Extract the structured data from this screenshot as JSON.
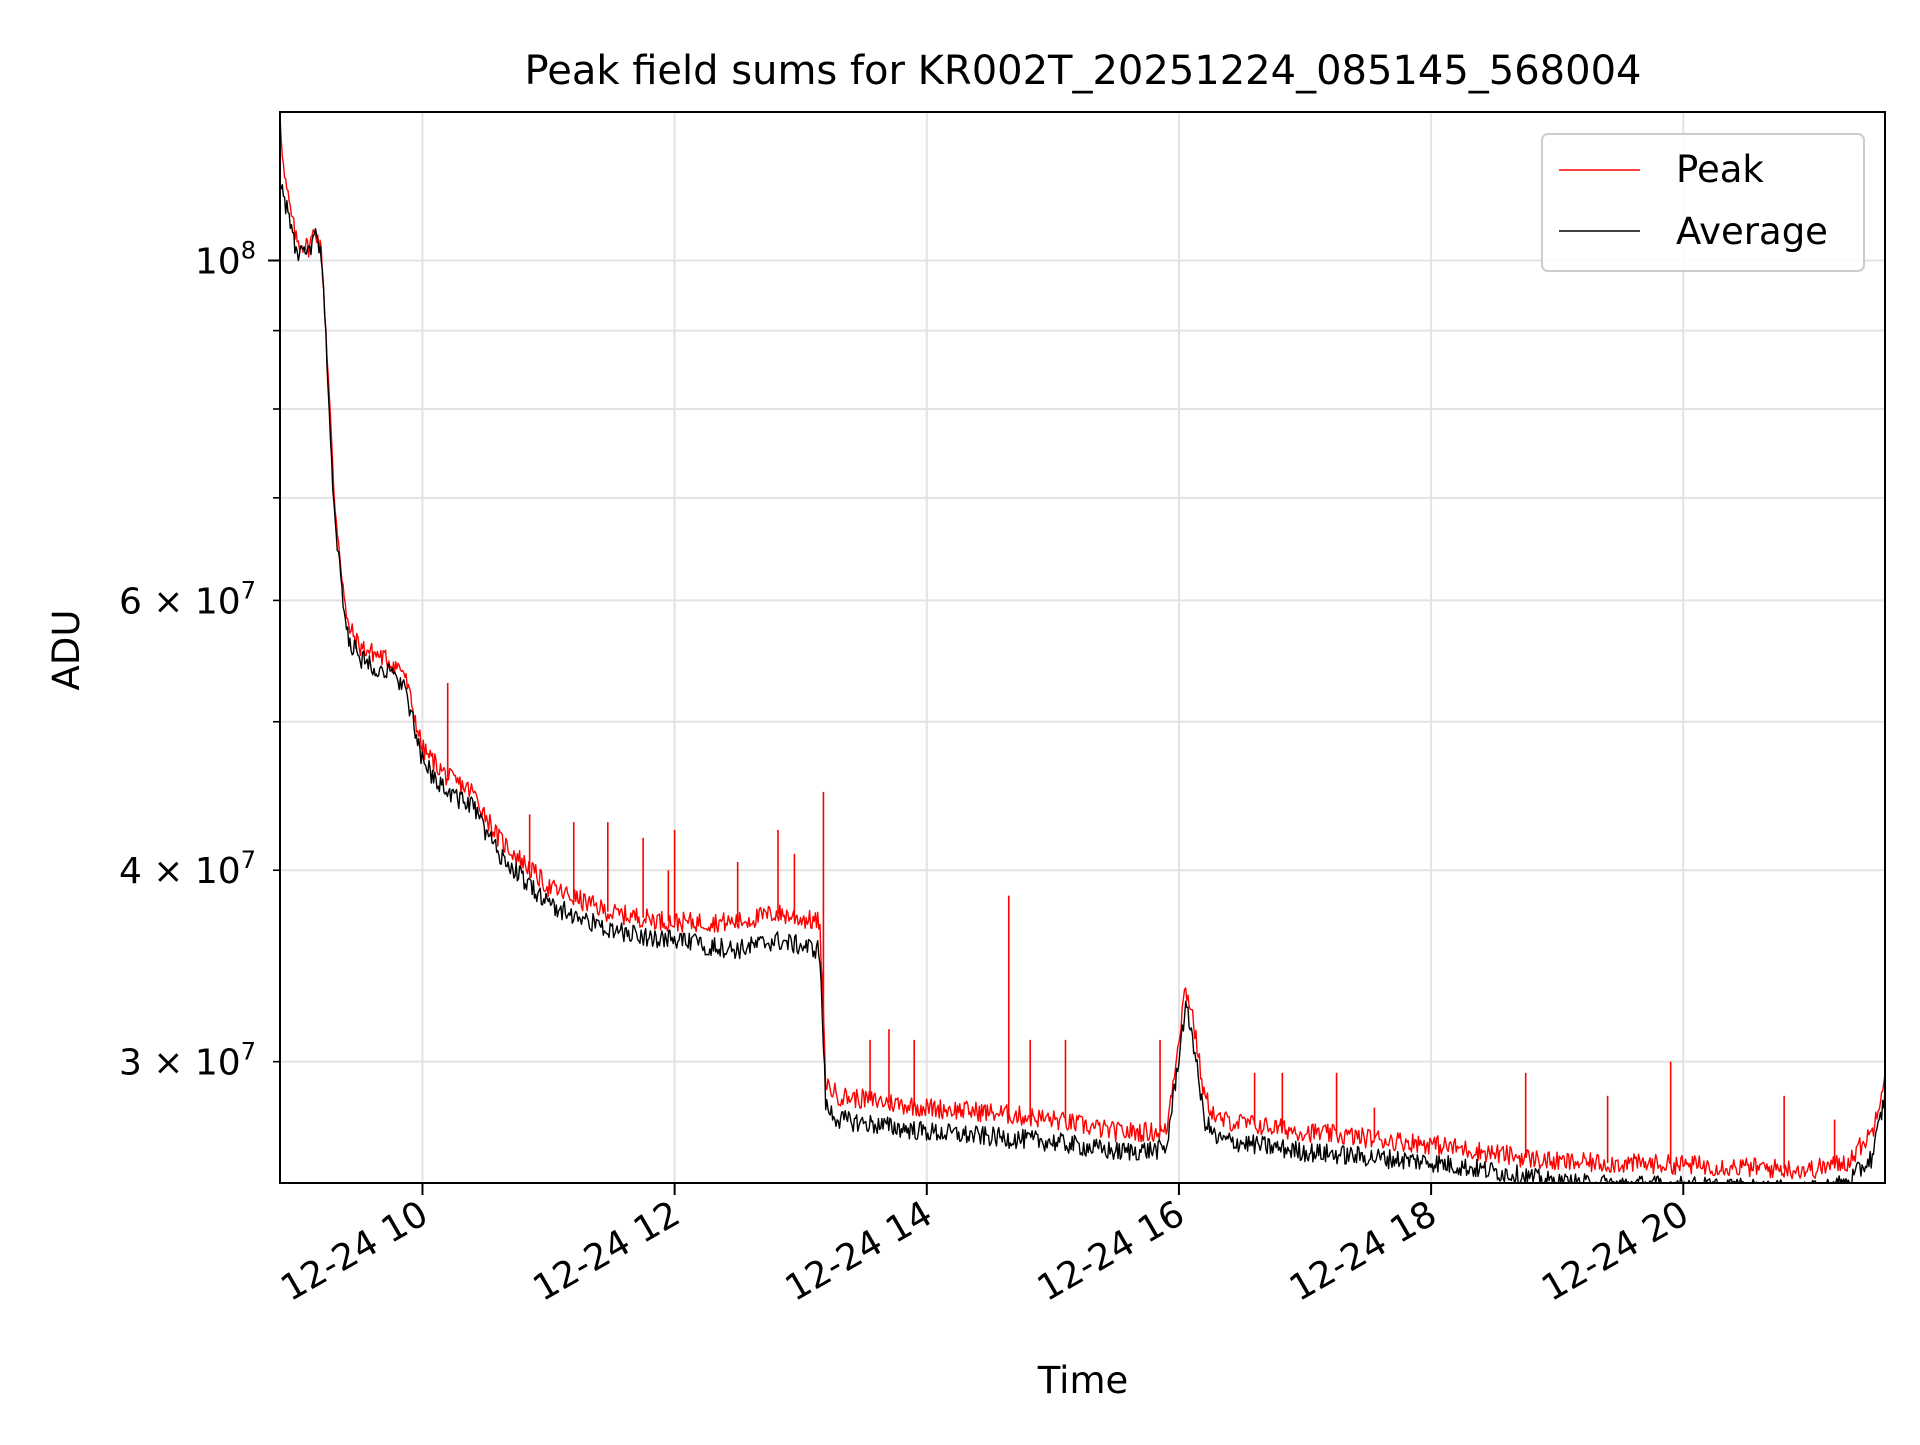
{
  "chart_data": {
    "type": "line",
    "title": "Peak field sums for KR002T_20251224_085145_568004",
    "xlabel": "Time",
    "ylabel": "ADU",
    "x_unit": "hours of day on 12-24",
    "xlim": [
      8.87,
      21.6
    ],
    "ylim": [
      25000000,
      125000000
    ],
    "yscale": "log",
    "grid": true,
    "legend_position": "top-right",
    "x_ticks": [
      {
        "value": 10,
        "label": "12-24 10"
      },
      {
        "value": 12,
        "label": "12-24 12"
      },
      {
        "value": 14,
        "label": "12-24 14"
      },
      {
        "value": 16,
        "label": "12-24 16"
      },
      {
        "value": 18,
        "label": "12-24 18"
      },
      {
        "value": 20,
        "label": "12-24 20"
      }
    ],
    "y_ticks_major": [
      {
        "value": 100000000,
        "base": "10",
        "exp": "8"
      }
    ],
    "y_ticks_minor": [
      {
        "value": 30000000,
        "mant": "3",
        "base": "10",
        "exp": "7"
      },
      {
        "value": 40000000,
        "mant": "4",
        "base": "10",
        "exp": "7"
      },
      {
        "value": 60000000,
        "mant": "6",
        "base": "10",
        "exp": "7"
      }
    ],
    "y_ticks_minor_unlabeled": [
      50000000,
      70000000,
      80000000,
      90000000
    ],
    "series": [
      {
        "name": "Peak",
        "color": "#ff0000",
        "x": [
          8.87,
          8.9,
          8.95,
          9.0,
          9.1,
          9.15,
          9.2,
          9.25,
          9.3,
          9.4,
          9.5,
          9.7,
          9.85,
          10.0,
          10.2,
          10.4,
          10.6,
          11.0,
          11.5,
          12.0,
          12.5,
          12.8,
          13.15,
          13.2,
          13.3,
          14.0,
          14.5,
          15.0,
          15.5,
          15.9,
          16.05,
          16.1,
          16.2,
          16.3,
          17.0,
          18.0,
          18.7,
          19.0,
          20.0,
          20.5,
          21.0,
          21.3,
          21.5,
          21.6
        ],
        "y": [
          125000000,
          114000000,
          108000000,
          103000000,
          102000000,
          105000000,
          101000000,
          85000000,
          70000000,
          58000000,
          56000000,
          55000000,
          54000000,
          48000000,
          46000000,
          45000000,
          42000000,
          39000000,
          37500000,
          37000000,
          37000000,
          37500000,
          37000000,
          29000000,
          28500000,
          28000000,
          27800000,
          27500000,
          27000000,
          27000000,
          33500000,
          32500000,
          28500000,
          27500000,
          27000000,
          26500000,
          26000000,
          25800000,
          25700000,
          25600000,
          25500000,
          25800000,
          27000000,
          29500000
        ]
      },
      {
        "name": "Average",
        "color": "#000000",
        "x": [
          8.87,
          8.9,
          8.95,
          9.0,
          9.1,
          9.15,
          9.2,
          9.25,
          9.3,
          9.4,
          9.5,
          9.7,
          9.85,
          10.0,
          10.2,
          10.4,
          10.6,
          11.0,
          11.5,
          12.0,
          12.5,
          12.8,
          13.15,
          13.2,
          13.3,
          14.0,
          14.5,
          15.0,
          15.5,
          15.9,
          16.05,
          16.1,
          16.2,
          16.3,
          17.0,
          18.0,
          18.7,
          19.0,
          20.0,
          20.5,
          21.0,
          21.3,
          21.5,
          21.6
        ],
        "y": [
          113000000,
          110000000,
          106000000,
          101000000,
          101000000,
          104000000,
          100000000,
          84000000,
          68000000,
          57000000,
          55000000,
          54000000,
          53000000,
          47000000,
          45000000,
          44000000,
          41000000,
          38000000,
          36500000,
          36000000,
          35500000,
          36000000,
          35500000,
          28000000,
          27500000,
          27000000,
          26800000,
          26600000,
          26200000,
          26300000,
          32500000,
          31500000,
          27500000,
          26700000,
          26200000,
          25800000,
          25300000,
          25000000,
          24900000,
          24800000,
          24700000,
          25000000,
          26000000,
          28500000
        ]
      }
    ],
    "spikes": [
      {
        "x": 10.2,
        "y": 53000000
      },
      {
        "x": 10.85,
        "y": 43500000
      },
      {
        "x": 11.2,
        "y": 43000000
      },
      {
        "x": 11.47,
        "y": 43000000
      },
      {
        "x": 11.75,
        "y": 42000000
      },
      {
        "x": 11.95,
        "y": 40000000
      },
      {
        "x": 12.0,
        "y": 42500000
      },
      {
        "x": 12.5,
        "y": 40500000
      },
      {
        "x": 12.82,
        "y": 42500000
      },
      {
        "x": 12.95,
        "y": 41000000
      },
      {
        "x": 13.18,
        "y": 45000000
      },
      {
        "x": 13.55,
        "y": 31000000
      },
      {
        "x": 13.7,
        "y": 31500000
      },
      {
        "x": 13.9,
        "y": 31000000
      },
      {
        "x": 14.65,
        "y": 38500000
      },
      {
        "x": 14.82,
        "y": 31000000
      },
      {
        "x": 15.1,
        "y": 31000000
      },
      {
        "x": 15.85,
        "y": 31000000
      },
      {
        "x": 16.6,
        "y": 29500000
      },
      {
        "x": 16.82,
        "y": 29500000
      },
      {
        "x": 17.25,
        "y": 29500000
      },
      {
        "x": 17.55,
        "y": 28000000
      },
      {
        "x": 18.75,
        "y": 29500000
      },
      {
        "x": 19.4,
        "y": 28500000
      },
      {
        "x": 19.9,
        "y": 30000000
      },
      {
        "x": 20.8,
        "y": 28500000
      },
      {
        "x": 21.2,
        "y": 27500000
      }
    ]
  }
}
